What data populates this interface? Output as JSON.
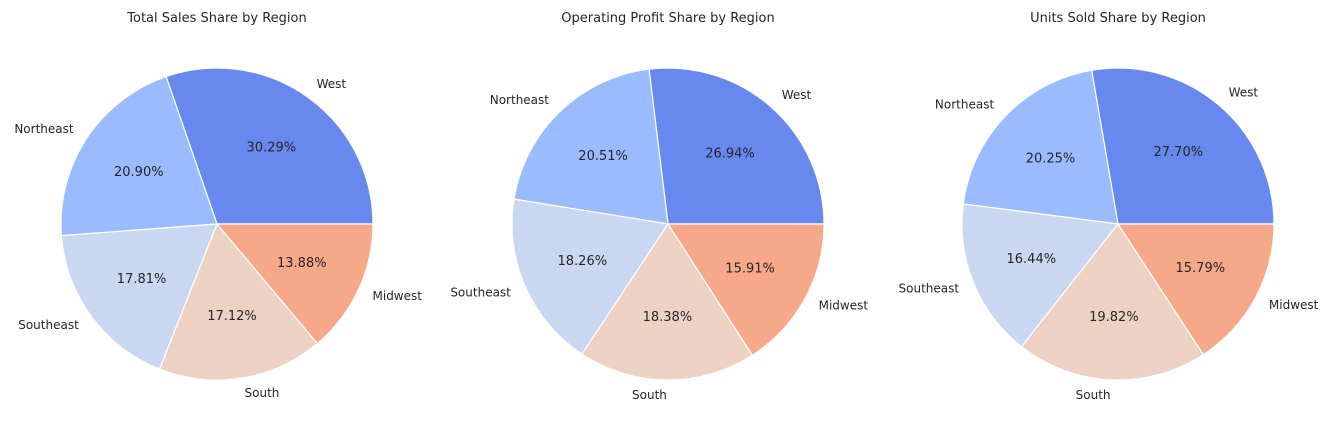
{
  "chart_data": [
    {
      "type": "pie",
      "title": "Total Sales Share by Region",
      "categories": [
        "West",
        "Northeast",
        "Southeast",
        "South",
        "Midwest"
      ],
      "values": [
        30.29,
        20.9,
        17.81,
        17.12,
        13.88
      ],
      "value_labels": [
        "30.29%",
        "20.90%",
        "17.81%",
        "17.12%",
        "13.88%"
      ],
      "unit": "%"
    },
    {
      "type": "pie",
      "title": "Operating Profit Share by Region",
      "categories": [
        "West",
        "Northeast",
        "Southeast",
        "South",
        "Midwest"
      ],
      "values": [
        26.94,
        20.51,
        18.26,
        18.38,
        15.91
      ],
      "value_labels": [
        "26.94%",
        "20.51%",
        "18.26%",
        "18.38%",
        "15.91%"
      ],
      "unit": "%"
    },
    {
      "type": "pie",
      "title": "Units Sold Share by Region",
      "categories": [
        "West",
        "Northeast",
        "Southeast",
        "South",
        "Midwest"
      ],
      "values": [
        27.7,
        20.25,
        16.44,
        19.82,
        15.79
      ],
      "value_labels": [
        "27.70%",
        "20.25%",
        "16.44%",
        "19.82%",
        "15.79%"
      ],
      "unit": "%"
    }
  ],
  "colors": {
    "West": "#6788ee",
    "Northeast": "#9abbff",
    "Southeast": "#c9d7f0",
    "South": "#edd1c2",
    "Midwest": "#f7a889",
    "text": "#262626",
    "slice_edge": "#ffffff"
  },
  "start_angle_deg": 0,
  "direction": "counterclockwise"
}
